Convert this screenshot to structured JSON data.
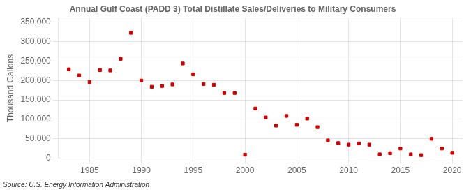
{
  "chart_data": {
    "type": "scatter",
    "title": "Annual Gulf Coast (PADD 3) Total Distillate Sales/Deliveries to Military Consumers",
    "ylabel": "Thousand Gallons",
    "annotations": [
      "Source: U.S. Energy Information Administration"
    ],
    "x": [
      1983,
      1984,
      1985,
      1986,
      1987,
      1988,
      1989,
      1990,
      1991,
      1992,
      1993,
      1994,
      1995,
      1996,
      1997,
      1998,
      1999,
      2000,
      2001,
      2002,
      2003,
      2004,
      2005,
      2006,
      2007,
      2008,
      2009,
      2010,
      2011,
      2012,
      2013,
      2014,
      2015,
      2016,
      2017,
      2018,
      2019,
      2020
    ],
    "values": [
      229000,
      213000,
      196000,
      227000,
      226000,
      256000,
      323000,
      200000,
      184000,
      186000,
      190000,
      244000,
      216000,
      191000,
      189000,
      168000,
      168000,
      9000,
      128000,
      105000,
      84000,
      109000,
      86000,
      102000,
      80000,
      46000,
      39000,
      35000,
      38000,
      35000,
      10000,
      13000,
      25000,
      10000,
      8000,
      50000,
      25000,
      14000
    ],
    "color": "#cc0000",
    "marker": "square",
    "xlim": [
      1982,
      2021
    ],
    "xticks": [
      1985,
      1990,
      1995,
      2000,
      2005,
      2010,
      2015,
      2020
    ],
    "ylim": [
      0,
      360000
    ],
    "yticks": [
      0,
      {
        "value": 50000,
        "label": "50,000"
      },
      {
        "value": 100000,
        "label": "100,000"
      },
      {
        "value": 150000,
        "label": "150,000"
      },
      {
        "value": 200000,
        "label": "200,000"
      },
      {
        "value": 250000,
        "label": "250,000"
      },
      {
        "value": 300000,
        "label": "300,000"
      },
      {
        "value": 350000,
        "label": "350,000"
      }
    ],
    "grid": true
  }
}
